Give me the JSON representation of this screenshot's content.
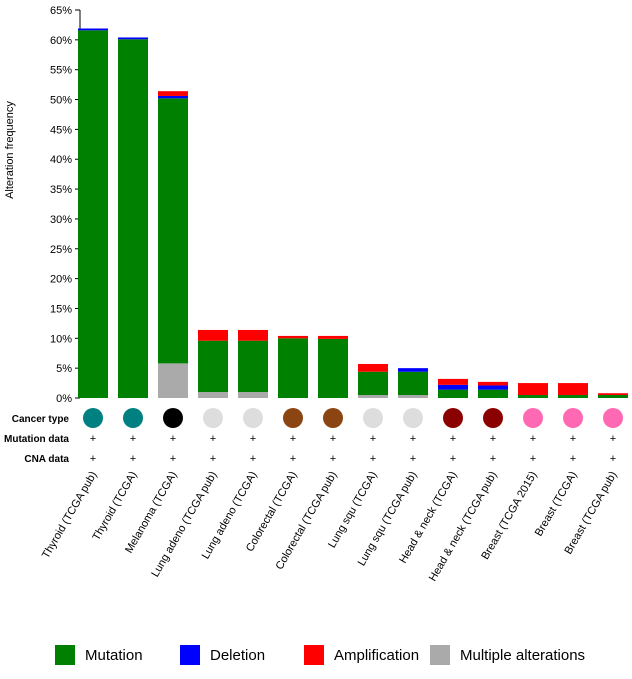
{
  "chart_data": {
    "type": "bar",
    "stacked": true,
    "ylabel": "Alteration frequency",
    "ylim": [
      0,
      65
    ],
    "y_ticks": [
      "0%",
      "5%",
      "10%",
      "15%",
      "20%",
      "25%",
      "30%",
      "35%",
      "40%",
      "45%",
      "50%",
      "55%",
      "60%",
      "65%"
    ],
    "categories": [
      "Thyroid (TCGA pub)",
      "Thyroid (TCGA)",
      "Melanoma (TCGA)",
      "Lung adeno (TCGA pub)",
      "Lung adeno (TCGA)",
      "Colorectal (TCGA)",
      "Colorectal (TCGA pub)",
      "Lung squ (TCGA)",
      "Lung squ (TCGA pub)",
      "Head & neck (TCGA)",
      "Head & neck (TCGA pub)",
      "Breast (TCGA 2015)",
      "Breast (TCGA)",
      "Breast (TCGA pub)"
    ],
    "series": [
      {
        "name": "Multiple alterations",
        "color": "#aaaaaa",
        "values": [
          0,
          0,
          5.8,
          1.0,
          1.0,
          0,
          0,
          0.5,
          0.5,
          0,
          0,
          0,
          0,
          0
        ]
      },
      {
        "name": "Mutation",
        "color": "#008000",
        "values": [
          61.6,
          60.1,
          44.4,
          8.6,
          8.6,
          10.0,
          9.9,
          3.9,
          3.9,
          1.4,
          1.4,
          0.5,
          0.5,
          0.5
        ]
      },
      {
        "name": "Deletion",
        "color": "#0000ff",
        "values": [
          0.3,
          0.3,
          0.4,
          0,
          0,
          0,
          0,
          0,
          0.6,
          0.8,
          0.7,
          0,
          0,
          0
        ]
      },
      {
        "name": "Amplification",
        "color": "#ff0000",
        "values": [
          0,
          0,
          0.8,
          1.8,
          1.8,
          0.4,
          0.5,
          1.3,
          0,
          1.0,
          0.6,
          2.0,
          2.0,
          0.3
        ]
      }
    ],
    "legend": {
      "position": "bottom",
      "items": [
        {
          "label": "Mutation",
          "color": "#008000"
        },
        {
          "label": "Deletion",
          "color": "#0000ff"
        },
        {
          "label": "Amplification",
          "color": "#ff0000"
        },
        {
          "label": "Multiple alterations",
          "color": "#aaaaaa"
        }
      ]
    },
    "annotation_rows": {
      "cancer_type_label": "Cancer type",
      "mutation_data_label": "Mutation data",
      "cna_data_label": "CNA data",
      "cancer_type_colors": [
        "#008080",
        "#008080",
        "#000000",
        "#dddddd",
        "#dddddd",
        "#8b4513",
        "#8b4513",
        "#dddddd",
        "#dddddd",
        "#8b0000",
        "#8b0000",
        "#ff69b4",
        "#ff69b4",
        "#ff69b4"
      ],
      "mutation_data": [
        "+",
        "+",
        "+",
        "+",
        "+",
        "+",
        "+",
        "+",
        "+",
        "+",
        "+",
        "+",
        "+",
        "+"
      ],
      "cna_data": [
        "+",
        "+",
        "+",
        "+",
        "+",
        "+",
        "+",
        "+",
        "+",
        "+",
        "+",
        "+",
        "+",
        "+"
      ]
    }
  }
}
